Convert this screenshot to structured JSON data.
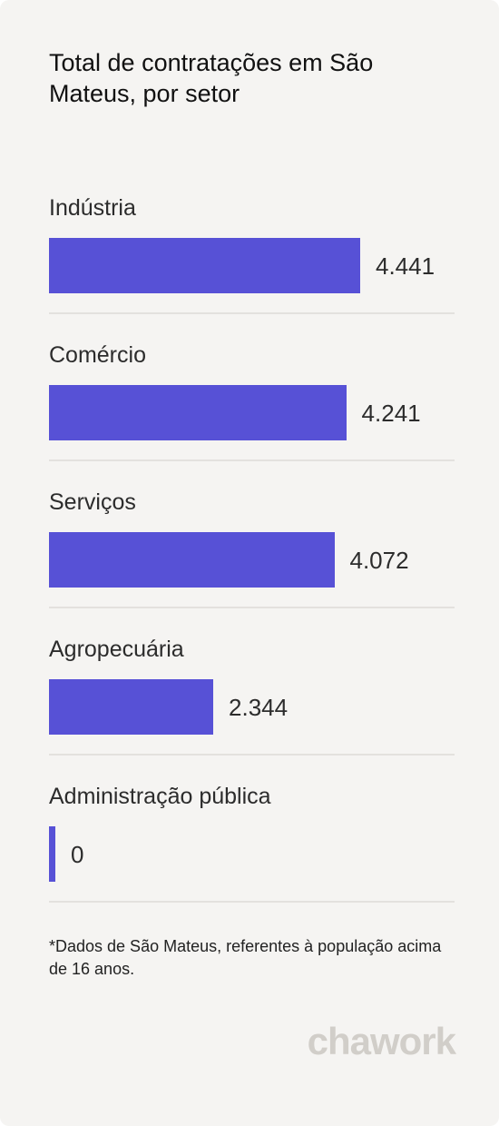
{
  "title": "Total de contratações em São Mateus, por setor",
  "footnote": "*Dados de São Mateus, referentes à população acima de 16 anos.",
  "logo_text": "chawork",
  "colors": {
    "bar": "#5751d6",
    "background": "#f5f4f2",
    "divider": "#e3e1de"
  },
  "chart_data": {
    "type": "bar",
    "orientation": "horizontal",
    "categories": [
      "Indústria",
      "Comércio",
      "Serviços",
      "Agropecuária",
      "Administração pública"
    ],
    "values": [
      4441,
      4241,
      4072,
      2344,
      0
    ],
    "value_labels": [
      "4.441",
      "4.241",
      "4.072",
      "2.344",
      "0"
    ],
    "title": "Total de contratações em São Mateus, por setor",
    "xlabel": "",
    "ylabel": "",
    "xlim": [
      0,
      4441
    ],
    "grid": false,
    "legend": "none"
  }
}
